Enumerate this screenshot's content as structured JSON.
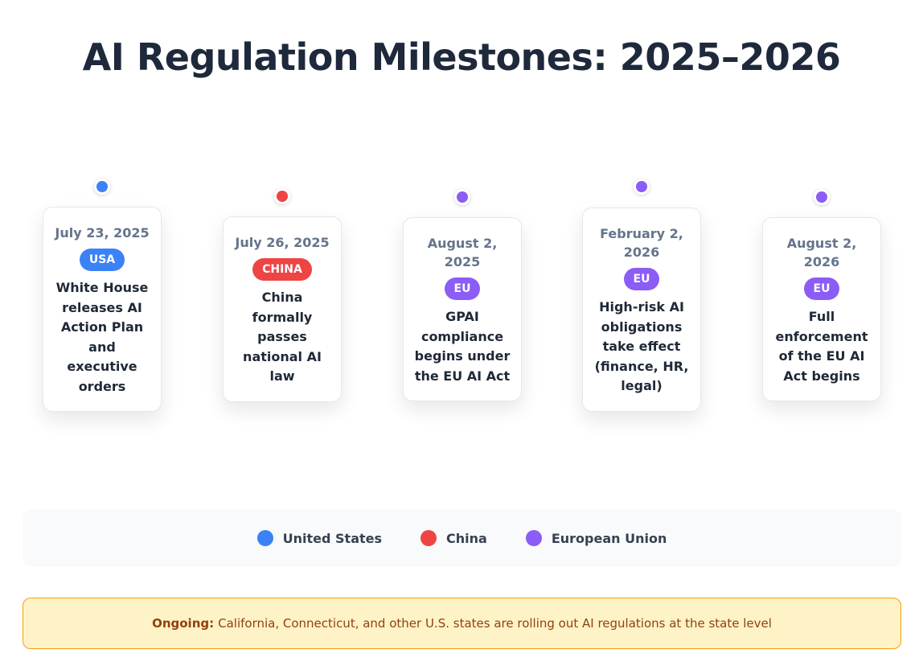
{
  "title": "AI Regulation Milestones: 2025–2026",
  "colors": {
    "usa": "#3b82f6",
    "china": "#ef4444",
    "eu": "#8b5cf6"
  },
  "milestones": [
    {
      "date": "July 23, 2025",
      "badge": "USA",
      "region": "usa",
      "text": "White House releases AI Action Plan and executive orders"
    },
    {
      "date": "July 26, 2025",
      "badge": "CHINA",
      "region": "china",
      "text": "China formally passes national AI law"
    },
    {
      "date": "August 2, 2025",
      "badge": "EU",
      "region": "eu",
      "text": "GPAI compliance begins under the EU AI Act"
    },
    {
      "date": "February 2, 2026",
      "badge": "EU",
      "region": "eu",
      "text": "High-risk AI obligations take effect (finance, HR, legal)"
    },
    {
      "date": "August 2, 2026",
      "badge": "EU",
      "region": "eu",
      "text": "Full enforcement of the EU AI Act begins"
    }
  ],
  "legend": [
    {
      "label": "United States",
      "region": "usa"
    },
    {
      "label": "China",
      "region": "china"
    },
    {
      "label": "European Union",
      "region": "eu"
    }
  ],
  "note": {
    "label": "Ongoing:",
    "text": "California, Connecticut, and other U.S. states are rolling out AI regulations at the state level"
  }
}
